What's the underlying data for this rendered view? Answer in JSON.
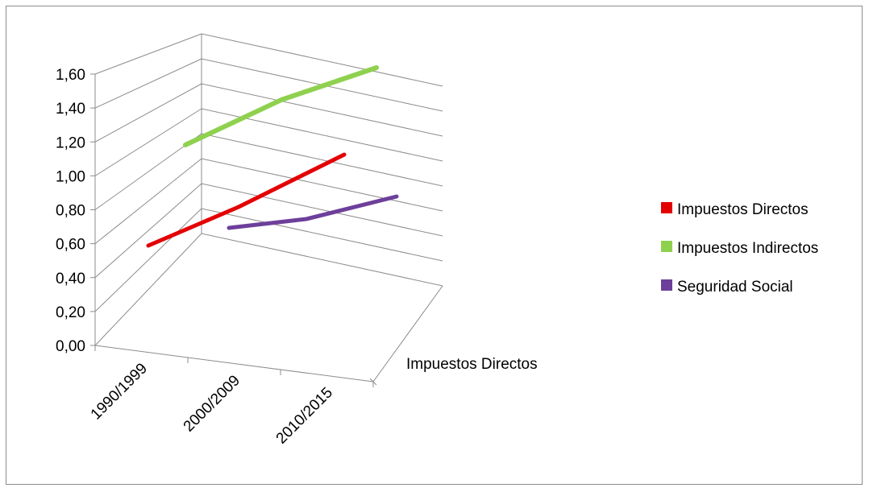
{
  "chart_data": {
    "type": "line",
    "title": "",
    "xlabel": "",
    "ylabel": "",
    "depth_label": "Impuestos Directos",
    "categories": [
      "1990/1999",
      "2000/2009",
      "2010/2015"
    ],
    "y_ticks": [
      "0,00",
      "0,20",
      "0,40",
      "0,60",
      "0,80",
      "1,00",
      "1,20",
      "1,40",
      "1,60"
    ],
    "ylim": [
      0,
      1.6
    ],
    "grid": true,
    "legend_position": "right",
    "series": [
      {
        "name": "Impuestos Directos",
        "values": [
          0.51,
          0.75,
          0.99
        ],
        "color": "#e30000"
      },
      {
        "name": "Impuestos Indirectos",
        "values": [
          1.04,
          1.34,
          1.48
        ],
        "color": "#8fd14f"
      },
      {
        "name": "Seguridad Social",
        "values": [
          0.6,
          0.64,
          0.8
        ],
        "color": "#6d3f9a"
      }
    ]
  }
}
